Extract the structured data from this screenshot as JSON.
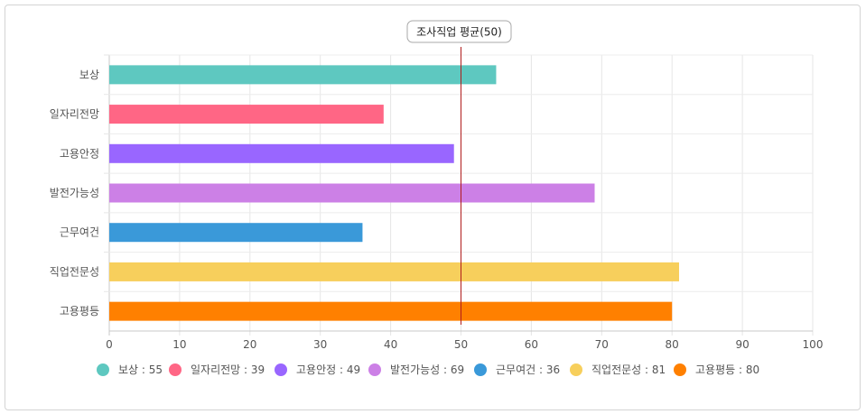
{
  "chart_data": {
    "type": "bar",
    "orientation": "horizontal",
    "categories": [
      "보상",
      "일자리전망",
      "고용안정",
      "발전가능성",
      "근무여건",
      "직업전문성",
      "고용평등"
    ],
    "values": [
      55,
      39,
      49,
      69,
      36,
      81,
      80
    ],
    "colors": [
      "#5ec8c0",
      "#ff6685",
      "#9966ff",
      "#cc80e6",
      "#3a99d9",
      "#f7cf5c",
      "#ff8000"
    ],
    "xlim": [
      0,
      100
    ],
    "xticks": [
      0,
      10,
      20,
      30,
      40,
      50,
      60,
      70,
      80,
      90,
      100
    ],
    "grid": true,
    "reference_line": {
      "value": 50,
      "label": "조사직업 평균(50)",
      "color": "#b01c1c"
    },
    "legend": {
      "placement": "bottom",
      "items": [
        "보상 : 55",
        "일자리전망 : 39",
        "고용안정 : 49",
        "발전가능성 : 69",
        "근무여건 : 36",
        "직업전문성 : 81",
        "고용평등 : 80"
      ]
    }
  }
}
